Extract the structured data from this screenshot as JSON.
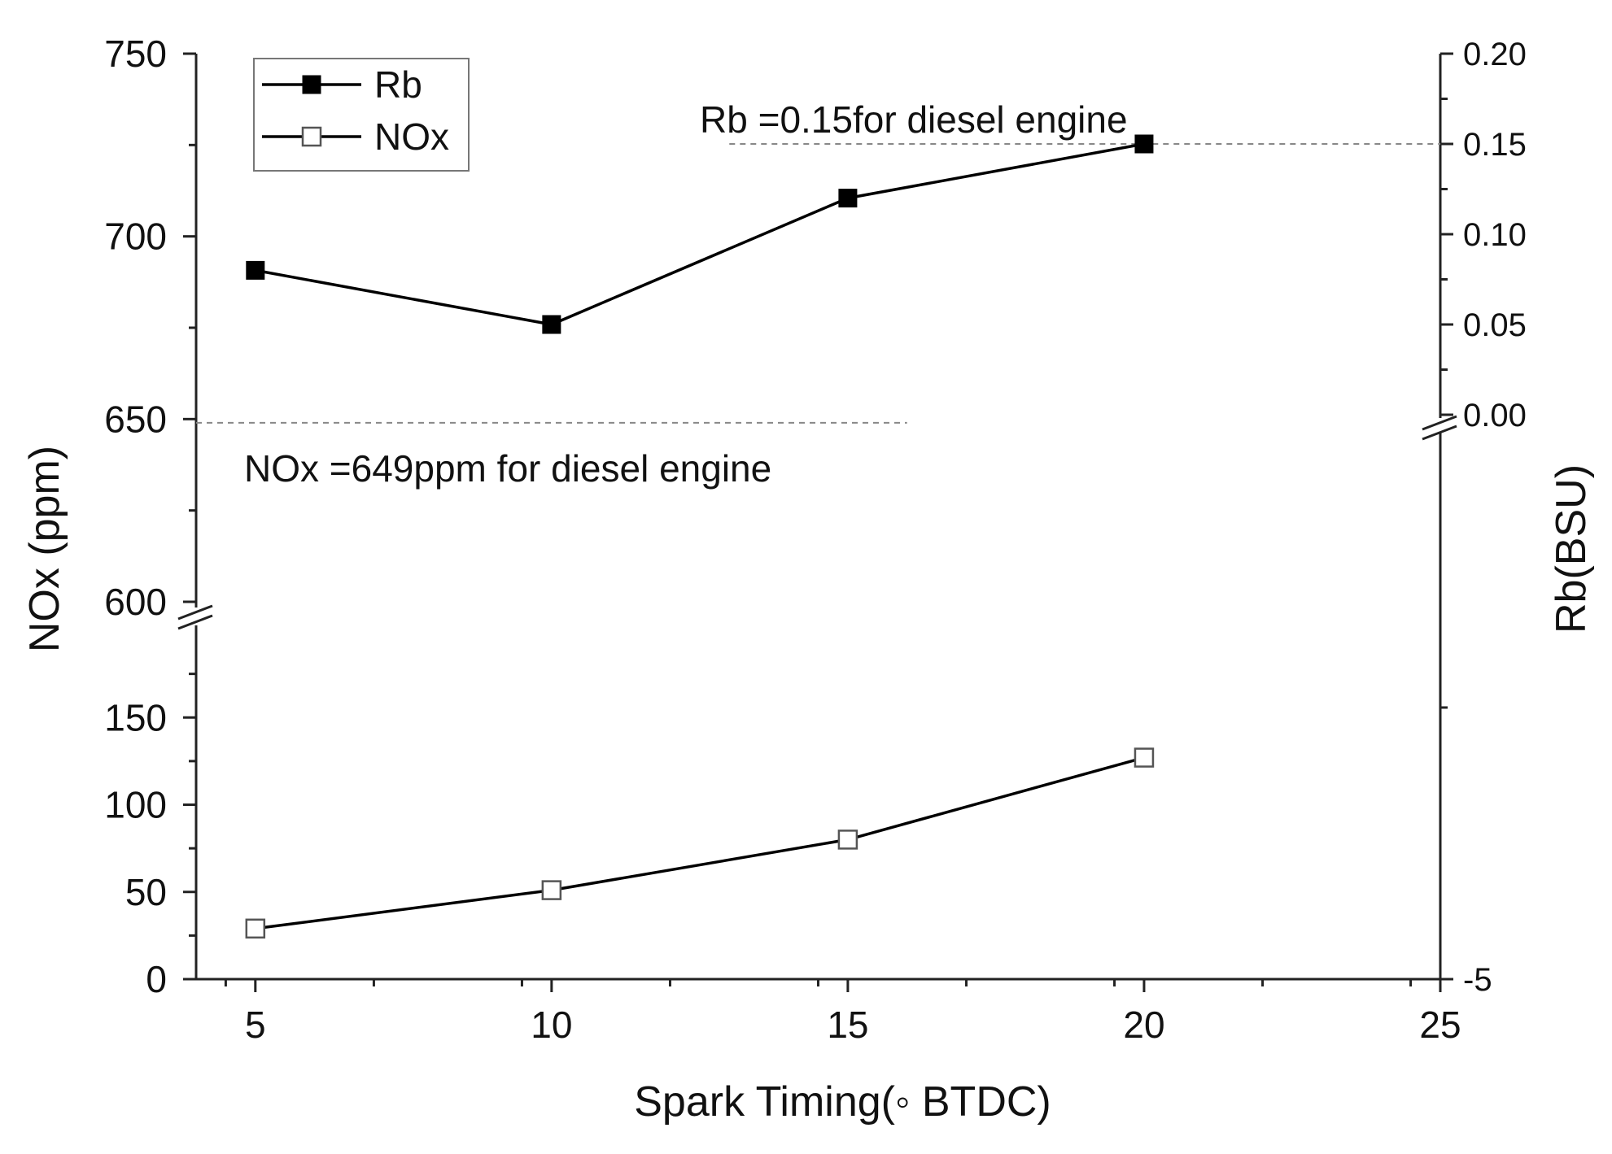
{
  "chart_data": {
    "type": "line",
    "x_axis": {
      "label": "Spark Timing(◦ BTDC)",
      "range": [
        4,
        25
      ],
      "ticks": [
        5,
        10,
        15,
        20,
        25
      ]
    },
    "y_left": {
      "label": "NOx (ppm)",
      "broken": true,
      "lower_segment": {
        "range": [
          0,
          200
        ],
        "ticks": [
          0,
          50,
          100,
          150
        ]
      },
      "upper_segment": {
        "range": [
          600,
          750
        ],
        "ticks": [
          600,
          650,
          700,
          750
        ]
      }
    },
    "y_right": {
      "label": "Rb(BSU)",
      "broken": true,
      "lower_tick": "-5",
      "upper_segment": {
        "range": [
          0.0,
          0.2
        ],
        "ticks": [
          "0.00",
          "0.05",
          "0.10",
          "0.15",
          "0.20"
        ]
      }
    },
    "series": [
      {
        "name": "Rb",
        "axis": "right",
        "marker": "filled-square",
        "color": "#000000",
        "x": [
          5,
          10,
          15,
          20
        ],
        "y": [
          0.08,
          0.05,
          0.12,
          0.15
        ]
      },
      {
        "name": "NOx",
        "axis": "left",
        "marker": "open-square",
        "color": "#000000",
        "x": [
          5,
          10,
          15,
          20
        ],
        "y": [
          29,
          51,
          80,
          127
        ]
      }
    ],
    "reference_lines": [
      {
        "axis": "right",
        "value": 0.15,
        "style": "dashed",
        "label": "Rb =0.15for diesel engine"
      },
      {
        "axis": "left",
        "value": 649,
        "style": "dashed",
        "label": "NOx =649ppm for diesel engine"
      }
    ],
    "legend": {
      "position": "top-left",
      "entries": [
        "Rb",
        "NOx"
      ]
    },
    "grid": false
  }
}
